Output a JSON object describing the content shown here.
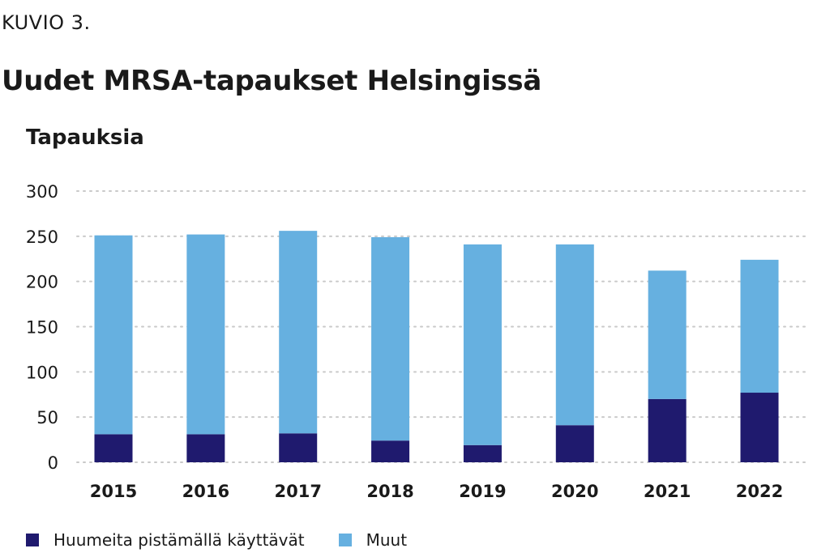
{
  "header": {
    "figure_label": "KUVIO 3.",
    "title": "Uudet MRSA-tapaukset Helsingissä"
  },
  "colors": {
    "series_1": "#1f1a6e",
    "series_2": "#66b0e0",
    "grid": "#c9c9c9"
  },
  "chart_data": {
    "type": "bar",
    "stacked": true,
    "title": "Uudet MRSA-tapaukset Helsingissä",
    "ylabel": "Tapauksia",
    "xlabel": "",
    "categories": [
      "2015",
      "2016",
      "2017",
      "2018",
      "2019",
      "2020",
      "2021",
      "2022"
    ],
    "series": [
      {
        "name": "Huumeita pistämällä käyttävät",
        "values": [
          31,
          31,
          32,
          24,
          19,
          41,
          70,
          77
        ]
      },
      {
        "name": "Muut",
        "values": [
          220,
          221,
          224,
          225,
          222,
          200,
          142,
          147
        ]
      }
    ],
    "ylim": [
      0,
      300
    ],
    "yticks": [
      "0",
      "50",
      "100",
      "150",
      "200",
      "250",
      "300"
    ],
    "grid": true,
    "legend_position": "bottom-left"
  }
}
